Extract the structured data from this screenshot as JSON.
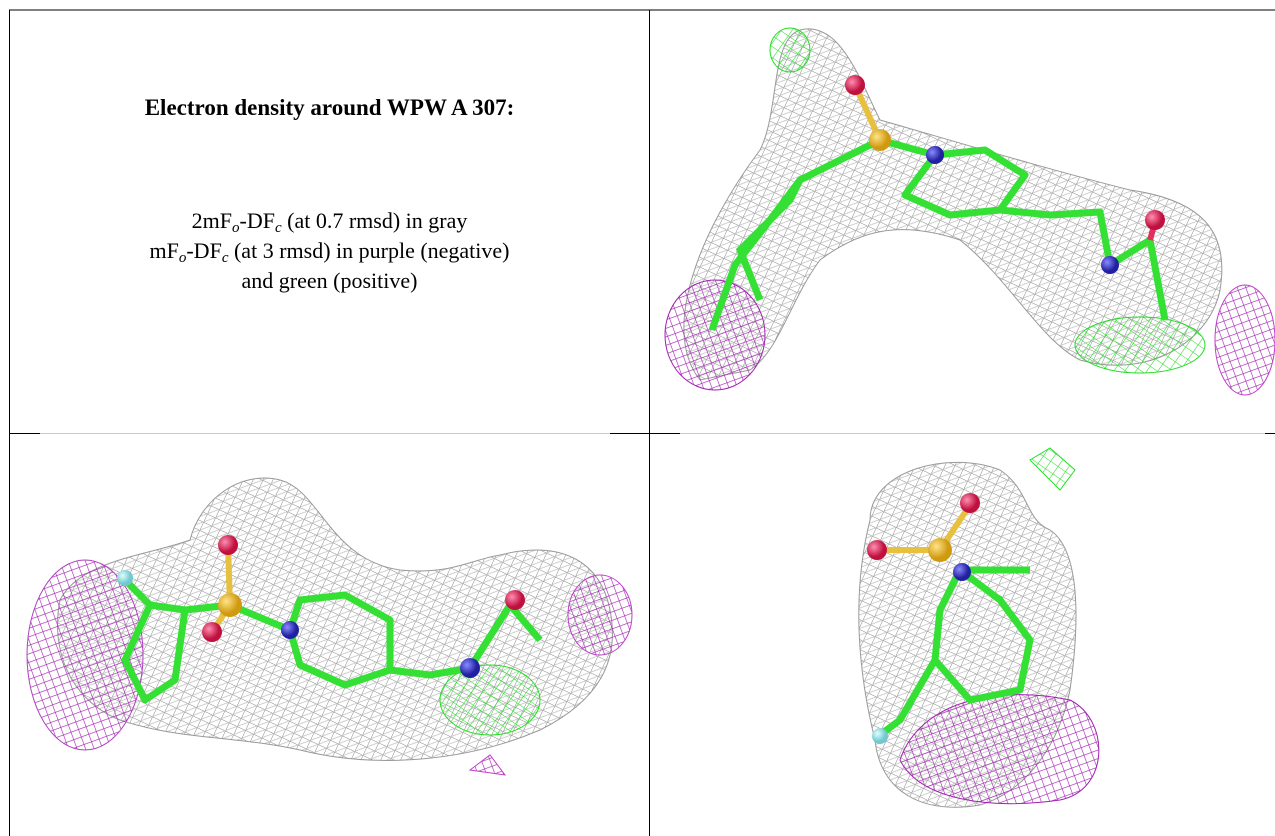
{
  "caption": {
    "title": "Electron density around WPW A 307:",
    "lines": [
      {
        "parts": [
          "2mF",
          "o",
          "-DF",
          "c",
          " (at 0.7 rmsd) in gray"
        ]
      },
      {
        "parts": [
          "mF",
          "o",
          "-DF",
          "c",
          " (at 3 rmsd) in purple (negative)"
        ]
      },
      {
        "parts": [
          "and green (positive)"
        ]
      }
    ]
  }
}
